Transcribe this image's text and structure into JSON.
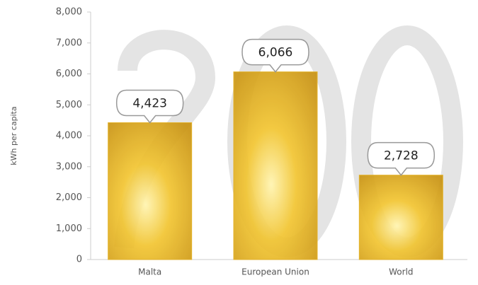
{
  "chart_data": {
    "type": "bar",
    "y_label": "kWh per capita",
    "categories": [
      "Malta",
      "European Union",
      "World"
    ],
    "values": [
      4423,
      6066,
      2728
    ],
    "value_labels": [
      "4,423",
      "6,066",
      "2,728"
    ],
    "color": "#e2ad1a",
    "ylim": [
      0,
      8000
    ],
    "yticks": [
      0,
      {
        "value": 1000,
        "label": "1,000"
      },
      {
        "value": 2000,
        "label": "2,000"
      },
      {
        "value": 3000,
        "label": "3,000"
      },
      {
        "value": 4000,
        "label": "4,000"
      },
      {
        "value": 5000,
        "label": "5,000"
      },
      {
        "value": 6000,
        "label": "6,000"
      },
      {
        "value": 7000,
        "label": "7,000"
      },
      {
        "value": 8000,
        "label": "8,000"
      }
    ],
    "grid": false
  }
}
